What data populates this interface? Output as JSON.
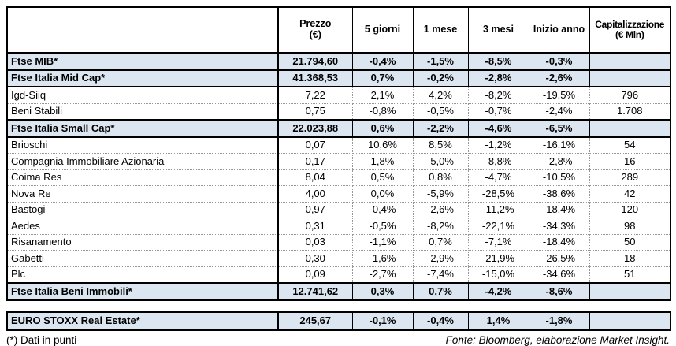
{
  "chart_data": {
    "type": "table",
    "row_keys": [
      "name",
      "prezzo",
      "d5",
      "m1",
      "m3",
      "ytd",
      "cap"
    ],
    "columns": [
      {
        "label": ""
      },
      {
        "label": "Prezzo\n(€)"
      },
      {
        "label": "5 giorni"
      },
      {
        "label": "1 mese"
      },
      {
        "label": "3 mesi"
      },
      {
        "label": "Inizio anno"
      },
      {
        "label": "Capitalizzazione\n(€ Mln)"
      }
    ],
    "rows": [
      {
        "is_index": true,
        "name": "Ftse MIB*",
        "prezzo": "21.794,60",
        "d5": "-0,4%",
        "m1": "-1,5%",
        "m3": "-8,5%",
        "ytd": "-0,3%",
        "cap": ""
      },
      {
        "is_index": true,
        "name": "Ftse Italia Mid Cap*",
        "prezzo": "41.368,53",
        "d5": "0,7%",
        "m1": "-0,2%",
        "m3": "-2,8%",
        "ytd": "-2,6%",
        "cap": ""
      },
      {
        "is_index": false,
        "name": "Igd-Siiq",
        "prezzo": "7,22",
        "d5": "2,1%",
        "m1": "4,2%",
        "m3": "-8,2%",
        "ytd": "-19,5%",
        "cap": "796"
      },
      {
        "is_index": false,
        "name": "Beni Stabili",
        "prezzo": "0,75",
        "d5": "-0,8%",
        "m1": "-0,5%",
        "m3": "-0,7%",
        "ytd": "-2,4%",
        "cap": "1.708"
      },
      {
        "is_index": true,
        "name": "Ftse Italia Small Cap*",
        "prezzo": "22.023,88",
        "d5": "0,6%",
        "m1": "-2,2%",
        "m3": "-4,6%",
        "ytd": "-6,5%",
        "cap": ""
      },
      {
        "is_index": false,
        "name": "Brioschi",
        "prezzo": "0,07",
        "d5": "10,6%",
        "m1": "8,5%",
        "m3": "-1,2%",
        "ytd": "-16,1%",
        "cap": "54"
      },
      {
        "is_index": false,
        "name": "Compagnia Immobiliare Azionaria",
        "prezzo": "0,17",
        "d5": "1,8%",
        "m1": "-5,0%",
        "m3": "-8,8%",
        "ytd": "-2,8%",
        "cap": "16"
      },
      {
        "is_index": false,
        "name": "Coima Res",
        "prezzo": "8,04",
        "d5": "0,5%",
        "m1": "0,8%",
        "m3": "-4,7%",
        "ytd": "-10,5%",
        "cap": "289"
      },
      {
        "is_index": false,
        "name": "Nova Re",
        "prezzo": "4,00",
        "d5": "0,0%",
        "m1": "-5,9%",
        "m3": "-28,5%",
        "ytd": "-38,6%",
        "cap": "42"
      },
      {
        "is_index": false,
        "name": "Bastogi",
        "prezzo": "0,97",
        "d5": "-0,4%",
        "m1": "-2,6%",
        "m3": "-11,2%",
        "ytd": "-18,4%",
        "cap": "120"
      },
      {
        "is_index": false,
        "name": "Aedes",
        "prezzo": "0,31",
        "d5": "-0,5%",
        "m1": "-8,2%",
        "m3": "-22,1%",
        "ytd": "-34,3%",
        "cap": "98"
      },
      {
        "is_index": false,
        "name": "Risanamento",
        "prezzo": "0,03",
        "d5": "-1,1%",
        "m1": "0,7%",
        "m3": "-7,1%",
        "ytd": "-18,4%",
        "cap": "50"
      },
      {
        "is_index": false,
        "name": "Gabetti",
        "prezzo": "0,30",
        "d5": "-1,6%",
        "m1": "-2,9%",
        "m3": "-21,9%",
        "ytd": "-26,5%",
        "cap": "18"
      },
      {
        "is_index": false,
        "name": "Plc",
        "prezzo": "0,09",
        "d5": "-2,7%",
        "m1": "-7,4%",
        "m3": "-15,0%",
        "ytd": "-34,6%",
        "cap": "51"
      },
      {
        "is_index": true,
        "name": "Ftse Italia Beni Immobili*",
        "prezzo": "12.741,62",
        "d5": "0,3%",
        "m1": "0,7%",
        "m3": "-4,2%",
        "ytd": "-8,6%",
        "cap": ""
      }
    ],
    "euro_stoxx": {
      "is_index": true,
      "name": "EURO STOXX Real Estate*",
      "prezzo": "245,67",
      "d5": "-0,1%",
      "m1": "-0,4%",
      "m3": "1,4%",
      "ytd": "-1,8%",
      "cap": ""
    },
    "layout": {
      "grid": "dotted-inner-solid-index-rows",
      "legend": "none"
    }
  },
  "footer": {
    "note": "(*) Dati in punti",
    "source": "Fonte: Bloomberg, elaborazione Market Insight."
  },
  "colors": {
    "highlight_row": "#dce6f1",
    "border": "#000000",
    "grid_dotted": "#969696",
    "background": "#ffffff"
  }
}
